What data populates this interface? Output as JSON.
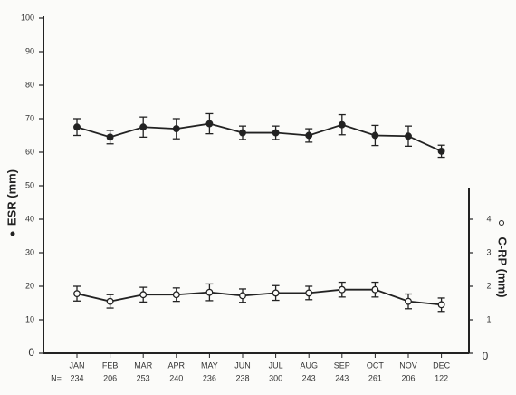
{
  "chart_data": {
    "type": "line",
    "categories": [
      "JAN",
      "FEB",
      "MAR",
      "APR",
      "MAY",
      "JUN",
      "JUL",
      "AUG",
      "SEP",
      "OCT",
      "NOV",
      "DEC"
    ],
    "n_label": "N=",
    "n_values": [
      234,
      206,
      253,
      240,
      236,
      238,
      300,
      243,
      243,
      261,
      206,
      122
    ],
    "ylabel": "ESR (mm)",
    "y2label": "C-RP (mm)",
    "ylim": [
      0,
      100
    ],
    "yticks": [
      0,
      10,
      20,
      30,
      40,
      50,
      60,
      70,
      80,
      90,
      100
    ],
    "y2lim": [
      0,
      10
    ],
    "y2ticks": [
      0,
      1,
      2,
      3,
      4
    ],
    "series": [
      {
        "name": "ESR (mm)",
        "color": "#222222",
        "marker": "filled",
        "values": [
          67.5,
          64.5,
          67.5,
          67,
          68.5,
          65.8,
          65.8,
          65,
          68.2,
          65,
          64.8,
          60.3
        ],
        "errors": [
          2.5,
          2,
          3,
          3,
          3,
          2,
          2,
          2,
          3,
          3,
          3,
          1.8
        ]
      },
      {
        "name": "C-RP (mm)",
        "color": "#222222",
        "marker": "open",
        "axis": "y2",
        "values": [
          1.78,
          1.55,
          1.75,
          1.75,
          1.82,
          1.72,
          1.8,
          1.8,
          1.9,
          1.9,
          1.55,
          1.45
        ],
        "errors": [
          0.22,
          0.2,
          0.22,
          0.2,
          0.25,
          0.2,
          0.22,
          0.2,
          0.22,
          0.22,
          0.22,
          0.2
        ]
      }
    ]
  }
}
